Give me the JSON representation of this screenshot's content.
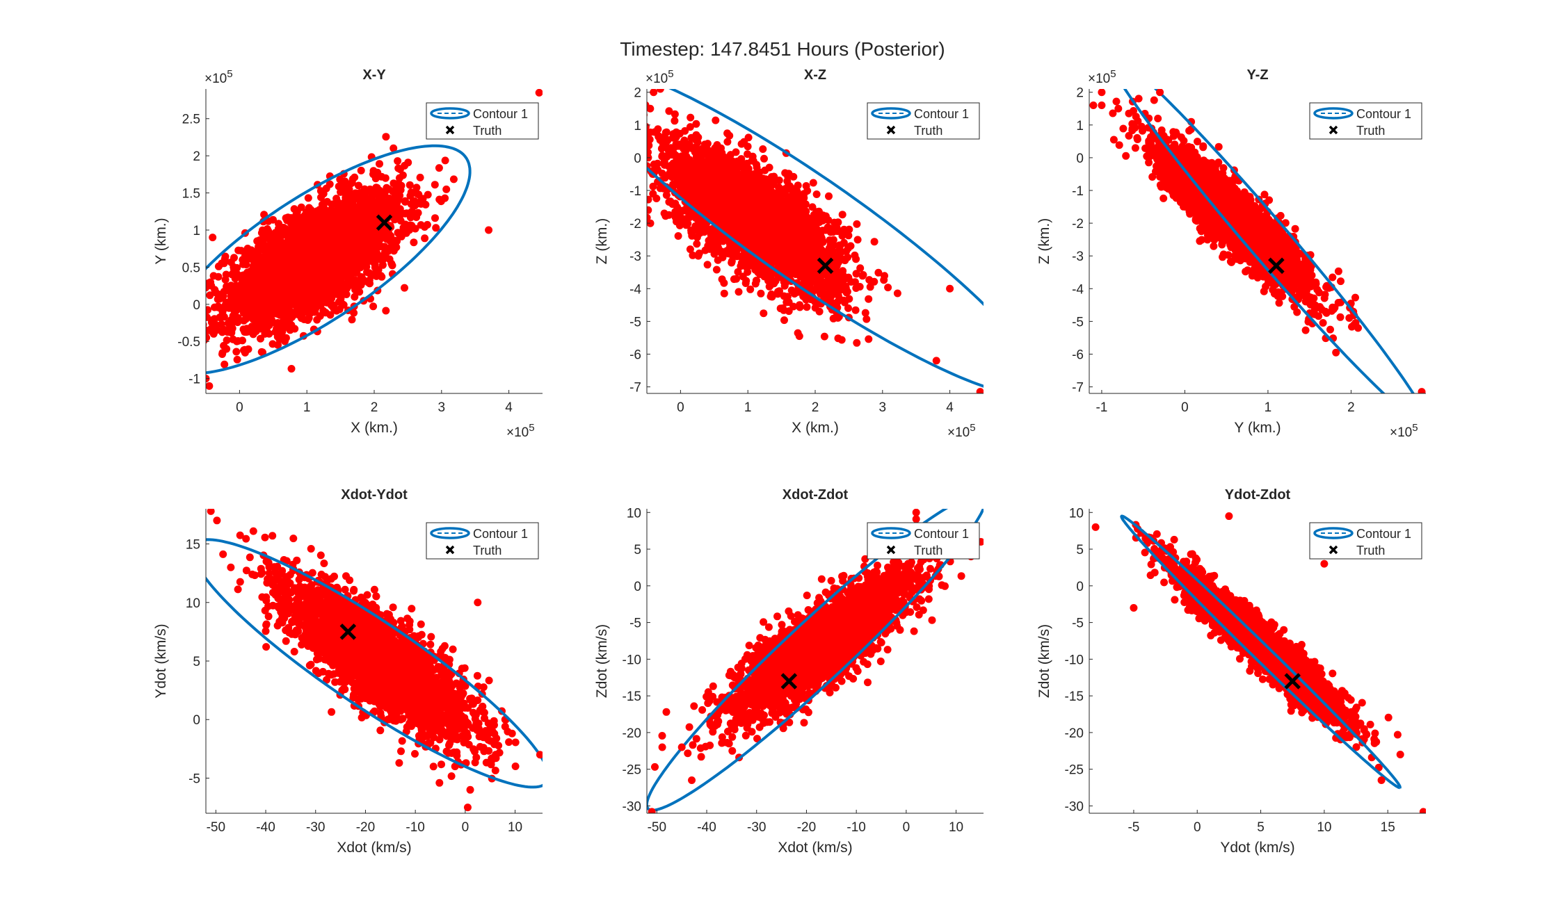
{
  "figure_title": "Timestep: 147.8451 Hours (Posterior)",
  "colors": {
    "points": "#ff0000",
    "contour": "#0072bd",
    "truth": "#000000",
    "axis": "#262626"
  },
  "legend": {
    "contour_label": "Contour 1",
    "truth_label": "Truth"
  },
  "chart_data": [
    {
      "type": "scatter",
      "title": "X-Y",
      "xlabel": "X (km.)",
      "ylabel": "Y (km.)",
      "xlim": [
        -50000,
        450000
      ],
      "ylim": [
        -120000,
        290000
      ],
      "xticks": [
        0,
        100000,
        200000,
        300000,
        400000
      ],
      "xtick_labels": [
        "0",
        "1",
        "2",
        "3",
        "4"
      ],
      "yticks": [
        -100000,
        -50000,
        0,
        50000,
        100000,
        150000,
        200000,
        250000
      ],
      "ytick_labels": [
        "-1",
        "-0.5",
        "0",
        "0.5",
        "1",
        "1.5",
        "2",
        "2.5"
      ],
      "x_exponent": "5",
      "y_exponent": "5",
      "legend_placement": "top-right",
      "truth": [
        215000,
        110000
      ],
      "cloud": {
        "center": [
          110000,
          60000
        ],
        "sd": [
          65000,
          45000
        ],
        "corr": 0.65,
        "count": 3000
      },
      "outliers": [
        [
          445000,
          285000
        ],
        [
          -45000,
          -110000
        ],
        [
          -50000,
          -35000
        ],
        [
          370000,
          100000
        ],
        [
          -40000,
          90000
        ],
        [
          -50000,
          -100000
        ]
      ],
      "contour": {
        "center": [
          110000,
          60000
        ],
        "semi_axes": [
          265000,
          85000
        ],
        "angle_deg": 30.6
      }
    },
    {
      "type": "scatter",
      "title": "X-Z",
      "xlabel": "X (km.)",
      "ylabel": "Z (km.)",
      "xlim": [
        -50000,
        450000
      ],
      "ylim": [
        -720000,
        210000
      ],
      "xticks": [
        0,
        100000,
        200000,
        300000,
        400000
      ],
      "xtick_labels": [
        "0",
        "1",
        "2",
        "3",
        "4"
      ],
      "yticks": [
        -700000,
        -600000,
        -500000,
        -400000,
        -300000,
        -200000,
        -100000,
        0,
        100000,
        200000
      ],
      "ytick_labels": [
        "-7",
        "-6",
        "-5",
        "-4",
        "-3",
        "-2",
        "-1",
        "0",
        "1",
        "2"
      ],
      "x_exponent": "5",
      "y_exponent": "5",
      "legend_placement": "top-right",
      "truth": [
        215000,
        -330000
      ],
      "cloud": {
        "center": [
          110000,
          -190000
        ],
        "sd": [
          65000,
          110000
        ],
        "corr": -0.7,
        "count": 3000
      },
      "outliers": [
        [
          445000,
          -715000
        ],
        [
          -40000,
          200000
        ],
        [
          -30000,
          210000
        ],
        [
          380000,
          -620000
        ],
        [
          -45000,
          150000
        ],
        [
          400000,
          -400000
        ]
      ],
      "contour": {
        "center": [
          190000,
          -220000
        ],
        "semi_axes": [
          600000,
          110000
        ],
        "angle_deg": -56.5
      }
    },
    {
      "type": "scatter",
      "title": "Y-Z",
      "xlabel": "Y (km.)",
      "ylabel": "Z (km.)",
      "xlim": [
        -115000,
        290000
      ],
      "ylim": [
        -720000,
        210000
      ],
      "xticks": [
        -100000,
        0,
        100000,
        200000
      ],
      "xtick_labels": [
        "-1",
        "0",
        "1",
        "2"
      ],
      "yticks": [
        -700000,
        -600000,
        -500000,
        -400000,
        -300000,
        -200000,
        -100000,
        0,
        100000,
        200000
      ],
      "ytick_labels": [
        "-7",
        "-6",
        "-5",
        "-4",
        "-3",
        "-2",
        "-1",
        "0",
        "1",
        "2"
      ],
      "x_exponent": "5",
      "y_exponent": "5",
      "legend_placement": "top-right",
      "truth": [
        110000,
        -330000
      ],
      "cloud": {
        "center": [
          60000,
          -190000
        ],
        "sd": [
          45000,
          110000
        ],
        "corr": -0.9,
        "count": 3000
      },
      "outliers": [
        [
          285000,
          -715000
        ],
        [
          -110000,
          160000
        ],
        [
          -100000,
          200000
        ],
        [
          -80000,
          150000
        ],
        [
          -30000,
          200000
        ],
        [
          -100000,
          160000
        ]
      ],
      "contour": {
        "center": [
          100000,
          -250000
        ],
        "semi_axes": [
          600000,
          30000
        ],
        "angle_deg": -71.5
      }
    },
    {
      "type": "scatter",
      "title": "Xdot-Ydot",
      "xlabel": "Xdot (km/s)",
      "ylabel": "Ydot (km/s)",
      "xlim": [
        -52,
        15.5
      ],
      "ylim": [
        -8,
        18
      ],
      "xticks": [
        -50,
        -40,
        -30,
        -20,
        -10,
        0,
        10
      ],
      "xtick_labels": [
        "-50",
        "-40",
        "-30",
        "-20",
        "-10",
        "0",
        "10"
      ],
      "yticks": [
        -5,
        0,
        5,
        10,
        15
      ],
      "ytick_labels": [
        "-5",
        "0",
        "5",
        "10",
        "15"
      ],
      "legend_placement": "top-right",
      "truth": [
        -23.5,
        7.5
      ],
      "cloud": {
        "center": [
          -17,
          5
        ],
        "sd": [
          9,
          3.2
        ],
        "corr": -0.8,
        "count": 3000
      },
      "outliers": [
        [
          -51,
          17.8
        ],
        [
          0.5,
          -7.5
        ],
        [
          15,
          -3
        ],
        [
          -47,
          13
        ],
        [
          2.5,
          10
        ],
        [
          1,
          -6
        ]
      ],
      "contour": {
        "center": [
          -19,
          4.8
        ],
        "semi_axes": [
          37,
          4.2
        ],
        "angle_deg": -15.3
      }
    },
    {
      "type": "scatter",
      "title": "Xdot-Zdot",
      "xlabel": "Xdot (km/s)",
      "ylabel": "Zdot (km/s)",
      "xlim": [
        -52,
        15.5
      ],
      "ylim": [
        -31,
        10.5
      ],
      "xticks": [
        -50,
        -40,
        -30,
        -20,
        -10,
        0,
        10
      ],
      "xtick_labels": [
        "-50",
        "-40",
        "-30",
        "-20",
        "-10",
        "0",
        "10"
      ],
      "yticks": [
        -30,
        -25,
        -20,
        -15,
        -10,
        -5,
        0,
        5,
        10
      ],
      "ytick_labels": [
        "-30",
        "-25",
        "-20",
        "-15",
        "-10",
        "-5",
        "0",
        "5",
        "10"
      ],
      "legend_placement": "top-right",
      "truth": [
        -23.5,
        -13
      ],
      "cloud": {
        "center": [
          -17,
          -8
        ],
        "sd": [
          9,
          5
        ],
        "corr": 0.85,
        "count": 3000
      },
      "outliers": [
        [
          -51,
          -30.8
        ],
        [
          15,
          6
        ],
        [
          2,
          10
        ],
        [
          -43,
          -26.5
        ],
        [
          13,
          4
        ],
        [
          -45,
          -22
        ]
      ],
      "contour": {
        "center": [
          -18,
          -9
        ],
        "semi_axes": [
          40,
          4.8
        ],
        "angle_deg": 32
      }
    },
    {
      "type": "scatter",
      "title": "Ydot-Zdot",
      "xlabel": "Ydot (km/s)",
      "ylabel": "Zdot (km/s)",
      "xlim": [
        -8.5,
        18
      ],
      "ylim": [
        -31,
        10.5
      ],
      "xticks": [
        -5,
        0,
        5,
        10,
        15
      ],
      "xtick_labels": [
        "-5",
        "0",
        "5",
        "10",
        "15"
      ],
      "yticks": [
        -30,
        -25,
        -20,
        -15,
        -10,
        -5,
        0,
        5,
        10
      ],
      "ytick_labels": [
        "-30",
        "-25",
        "-20",
        "-15",
        "-10",
        "-5",
        "0",
        "5",
        "10"
      ],
      "legend_placement": "top-right",
      "truth": [
        7.5,
        -13
      ],
      "cloud": {
        "center": [
          5,
          -8
        ],
        "sd": [
          3.2,
          5
        ],
        "corr": -0.95,
        "count": 3000
      },
      "outliers": [
        [
          17.8,
          -30.8
        ],
        [
          -8,
          8
        ],
        [
          2.5,
          9.5
        ],
        [
          -5,
          -3
        ],
        [
          10,
          3
        ],
        [
          14.5,
          -26.5
        ]
      ],
      "contour": {
        "center": [
          5,
          -9
        ],
        "semi_axes": [
          21.5,
          0.8
        ],
        "angle_deg": -59.4
      }
    }
  ]
}
